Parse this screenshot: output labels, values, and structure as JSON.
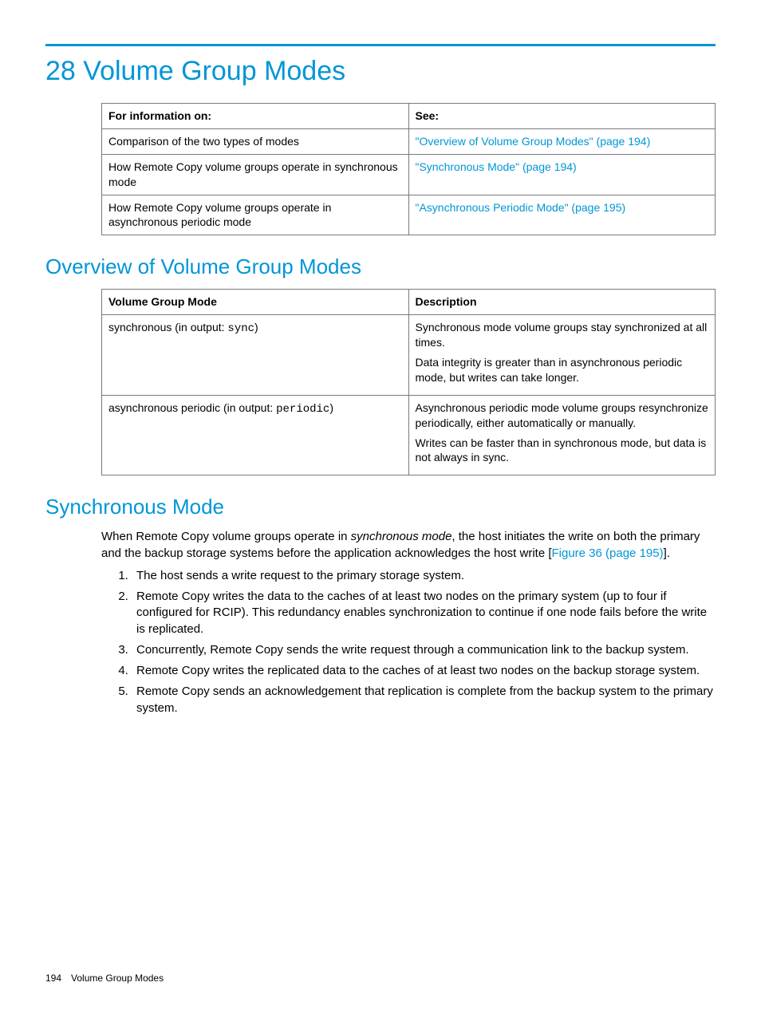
{
  "chapter": {
    "number": "28",
    "title": "Volume Group Modes"
  },
  "nav_table": {
    "headers": {
      "left": "For information on:",
      "right": "See:"
    },
    "rows": [
      {
        "info": "Comparison of the two types of modes",
        "see": "\"Overview of Volume Group Modes\" (page 194)"
      },
      {
        "info": "How Remote Copy volume groups operate in synchronous mode",
        "see": "\"Synchronous Mode\" (page 194)"
      },
      {
        "info": "How Remote Copy volume groups operate in asynchronous periodic mode",
        "see": "\"Asynchronous Periodic Mode\" (page 195)"
      }
    ]
  },
  "section_overview": {
    "title": "Overview of Volume Group Modes",
    "headers": {
      "mode": "Volume Group Mode",
      "desc": "Description"
    },
    "rows": [
      {
        "mode_prefix": "synchronous (in output: ",
        "mode_code": "sync",
        "mode_suffix": ")",
        "desc_p1": "Synchronous mode volume groups stay synchronized at all times.",
        "desc_p2": "Data integrity is greater than in asynchronous periodic mode, but writes can take longer."
      },
      {
        "mode_prefix": "asynchronous periodic (in output: ",
        "mode_code": "periodic",
        "mode_suffix": ")",
        "desc_p1": "Asynchronous periodic mode volume groups resynchronize periodically, either automatically or manually.",
        "desc_p2": "Writes can be faster than in synchronous mode, but data is not always in sync."
      }
    ]
  },
  "section_sync": {
    "title": "Synchronous Mode",
    "intro_pre": "When Remote Copy volume groups operate in ",
    "intro_em": "synchronous mode",
    "intro_mid": ", the host initiates the write on both the primary and the backup storage systems before the application acknowledges the host write [",
    "intro_link": "Figure 36 (page 195)",
    "intro_post": "].",
    "steps": [
      "The host sends a write request to the primary storage system.",
      "Remote Copy writes the data to the caches of at least two nodes on the primary system (up to four if configured for RCIP). This redundancy enables synchronization to continue if one node fails before the write is replicated.",
      "Concurrently, Remote Copy sends the write request through a communication link to the backup system.",
      "Remote Copy writes the replicated data to the caches of at least two nodes on the backup storage system.",
      "Remote Copy sends an acknowledgement that replication is complete from the backup system to the primary system."
    ]
  },
  "footer": {
    "page_number": "194",
    "chapter_label": "Volume Group Modes"
  },
  "colors": {
    "accent": "#0096d6",
    "border": "#7a7a7a",
    "text": "#000000"
  }
}
